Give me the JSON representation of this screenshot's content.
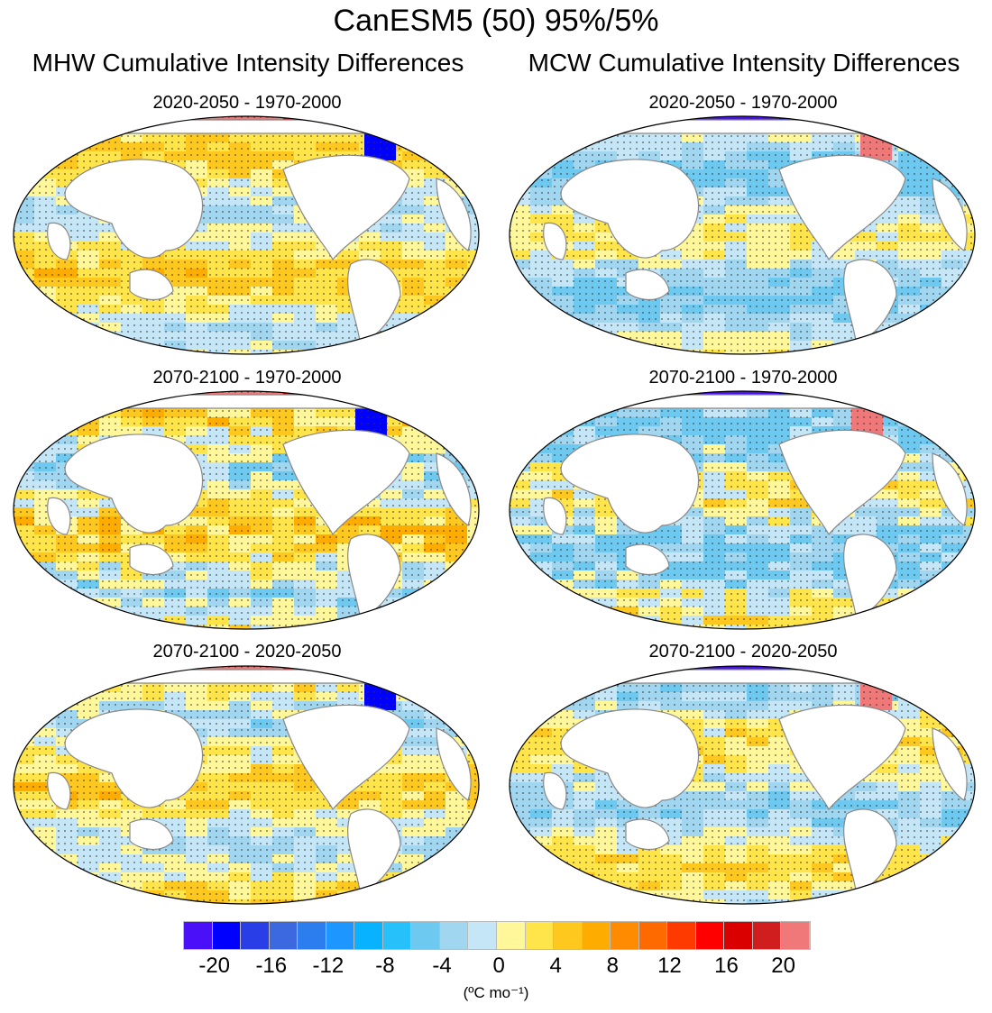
{
  "title": "CanESM5 (50) 95%/5%",
  "columns": [
    {
      "title": "MHW Cumulative Intensity Differences",
      "panels": [
        {
          "title": "2020-2050 - 1970-2000",
          "bias": "warm",
          "strength": 0.35
        },
        {
          "title": "2070-2100 - 1970-2000",
          "bias": "warm",
          "strength": 0.55
        },
        {
          "title": "2070-2100 - 2020-2050",
          "bias": "warm",
          "strength": 0.4
        }
      ]
    },
    {
      "title": "MCW Cumulative Intensity Differences",
      "panels": [
        {
          "title": "2020-2050 - 1970-2000",
          "bias": "cool",
          "strength": 0.35
        },
        {
          "title": "2070-2100 - 1970-2000",
          "bias": "cool",
          "strength": 0.55
        },
        {
          "title": "2070-2100 - 2020-2050",
          "bias": "mixed",
          "strength": 0.4
        }
      ]
    }
  ],
  "colorbar": {
    "colors": [
      "#4a10f8",
      "#0000ff",
      "#2a3ee8",
      "#3c69e0",
      "#2c7ded",
      "#1e96ff",
      "#08b2ff",
      "#26c1fa",
      "#6ec9f0",
      "#a0d6f0",
      "#c4e6f6",
      "#fff799",
      "#ffe44a",
      "#ffc81e",
      "#ffac00",
      "#ff8c00",
      "#ff6a00",
      "#ff3a00",
      "#ff0000",
      "#db0000",
      "#d01e1e",
      "#f07878"
    ],
    "ticks": [
      "-20",
      "-16",
      "-12",
      "-8",
      "-4",
      "0",
      "4",
      "8",
      "12",
      "16",
      "20"
    ],
    "unit": "(ºC mo⁻¹)"
  }
}
